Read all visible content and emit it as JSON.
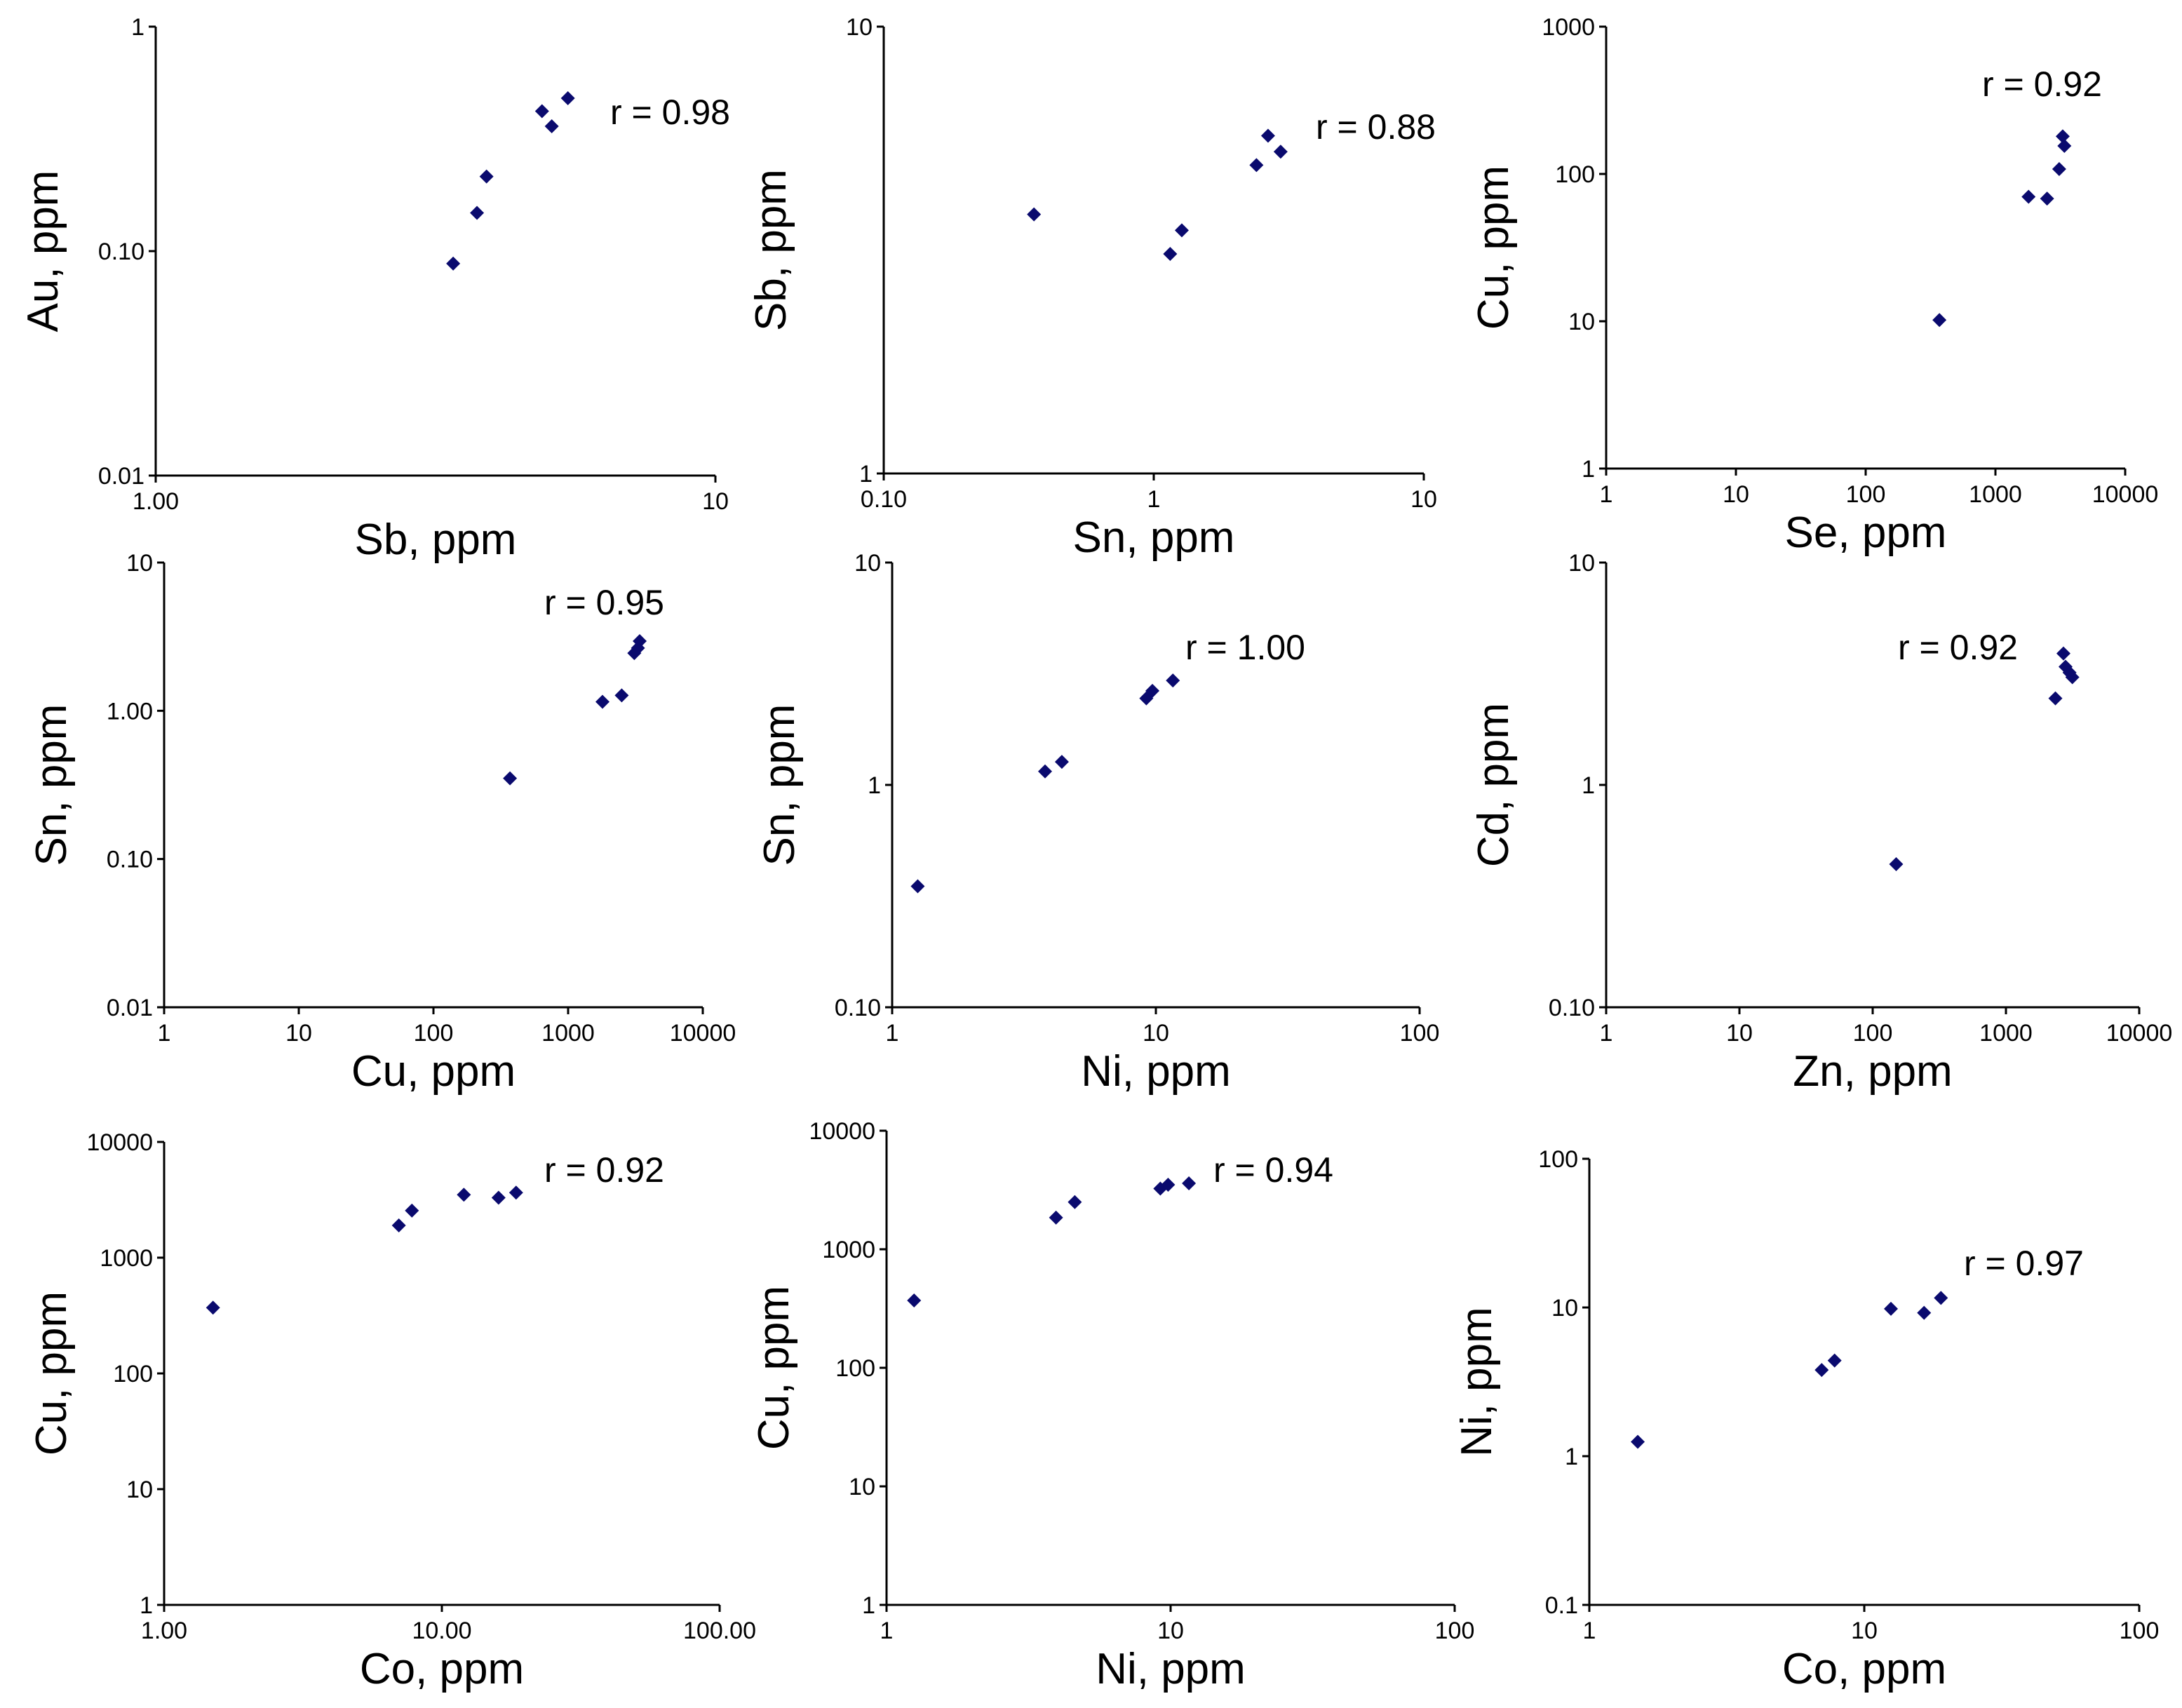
{
  "chart_data": [
    {
      "type": "scatter",
      "scale": "log-log",
      "xlabel": "Sb, ppm",
      "ylabel": "Au, ppm",
      "xlim": [
        1,
        10
      ],
      "ylim": [
        0.01,
        1
      ],
      "xticks": [
        1,
        10
      ],
      "xtick_labels": [
        "1.00",
        "10"
      ],
      "yticks": [
        0.01,
        0.1,
        1
      ],
      "ytick_labels": [
        "0.01",
        "0.10",
        "1"
      ],
      "annotation": "r = 0.98",
      "points": [
        [
          3.4,
          0.088
        ],
        [
          3.75,
          0.148
        ],
        [
          3.9,
          0.215
        ],
        [
          4.9,
          0.42
        ],
        [
          5.1,
          0.36
        ],
        [
          5.45,
          0.48
        ]
      ]
    },
    {
      "type": "scatter",
      "scale": "log-log",
      "xlabel": "Sn, ppm",
      "ylabel": "Sb, ppm",
      "xlim": [
        0.1,
        10
      ],
      "ylim": [
        1,
        10
      ],
      "xticks": [
        0.1,
        1,
        10
      ],
      "xtick_labels": [
        "0.10",
        "1",
        "10"
      ],
      "yticks": [
        1,
        10
      ],
      "ytick_labels": [
        "1",
        "10"
      ],
      "annotation": "r = 0.88",
      "points": [
        [
          0.36,
          3.8
        ],
        [
          1.15,
          3.1
        ],
        [
          1.27,
          3.5
        ],
        [
          2.4,
          4.9
        ],
        [
          2.65,
          5.7
        ],
        [
          2.95,
          5.25
        ]
      ]
    },
    {
      "type": "scatter",
      "scale": "log-log",
      "xlabel": "Se, ppm",
      "ylabel": "Cu, ppm",
      "xlim": [
        1,
        10000
      ],
      "ylim": [
        1,
        1000
      ],
      "xticks": [
        1,
        10,
        100,
        1000,
        10000
      ],
      "xtick_labels": [
        "1",
        "10",
        "100",
        "1000",
        "10000"
      ],
      "yticks": [
        1,
        10,
        100,
        1000
      ],
      "ytick_labels": [
        "1",
        "10",
        "100",
        "1000"
      ],
      "annotation": "r = 0.92",
      "points": [
        [
          370,
          10.2
        ],
        [
          1800,
          70
        ],
        [
          2500,
          68
        ],
        [
          3100,
          108
        ],
        [
          3300,
          180
        ],
        [
          3400,
          155
        ]
      ]
    },
    {
      "type": "scatter",
      "scale": "log-log",
      "xlabel": "Cu, ppm",
      "ylabel": "Sn, ppm",
      "xlim": [
        1,
        10000
      ],
      "ylim": [
        0.01,
        10
      ],
      "xticks": [
        1,
        10,
        100,
        1000,
        10000
      ],
      "xtick_labels": [
        "1",
        "10",
        "100",
        "1000",
        "10000"
      ],
      "yticks": [
        0.01,
        0.1,
        1,
        10
      ],
      "ytick_labels": [
        "0.01",
        "0.10",
        "1.00",
        "10"
      ],
      "annotation": "r = 0.95",
      "points": [
        [
          370,
          0.35
        ],
        [
          1800,
          1.15
        ],
        [
          2500,
          1.27
        ],
        [
          3100,
          2.45
        ],
        [
          3300,
          2.65
        ],
        [
          3400,
          2.95
        ]
      ]
    },
    {
      "type": "scatter",
      "scale": "log-log",
      "xlabel": "Ni, ppm",
      "ylabel": "Sn, ppm",
      "xlim": [
        1,
        100
      ],
      "ylim": [
        0.1,
        10
      ],
      "xticks": [
        1,
        10,
        100
      ],
      "xtick_labels": [
        "1",
        "10",
        "100"
      ],
      "yticks": [
        0.1,
        1,
        10
      ],
      "ytick_labels": [
        "0.10",
        "1",
        "10"
      ],
      "annotation": "r = 1.00",
      "points": [
        [
          1.25,
          0.35
        ],
        [
          3.8,
          1.15
        ],
        [
          4.4,
          1.27
        ],
        [
          9.2,
          2.45
        ],
        [
          9.7,
          2.65
        ],
        [
          11.6,
          2.95
        ]
      ]
    },
    {
      "type": "scatter",
      "scale": "log-log",
      "xlabel": "Zn, ppm",
      "ylabel": "Cd, ppm",
      "xlim": [
        1,
        10000
      ],
      "ylim": [
        0.1,
        10
      ],
      "xticks": [
        1,
        10,
        100,
        1000,
        10000
      ],
      "xtick_labels": [
        "1",
        "10",
        "100",
        "1000",
        "10000"
      ],
      "yticks": [
        0.1,
        1,
        10
      ],
      "ytick_labels": [
        "0.10",
        "1",
        "10"
      ],
      "annotation": "r = 0.92",
      "points": [
        [
          150,
          0.44
        ],
        [
          2350,
          2.45
        ],
        [
          2700,
          3.9
        ],
        [
          2800,
          3.4
        ],
        [
          3000,
          3.2
        ],
        [
          3150,
          3.05
        ]
      ]
    },
    {
      "type": "scatter",
      "scale": "log-log",
      "xlabel": "Co, ppm",
      "ylabel": "Cu, ppm",
      "xlim": [
        1,
        100
      ],
      "ylim": [
        1,
        10000
      ],
      "xticks": [
        1,
        10,
        100
      ],
      "xtick_labels": [
        "1.00",
        "10.00",
        "100.00"
      ],
      "yticks": [
        1,
        10,
        100,
        1000,
        10000
      ],
      "ytick_labels": [
        "1",
        "10",
        "100",
        "1000",
        "10000"
      ],
      "annotation": "r = 0.92",
      "points": [
        [
          1.5,
          370
        ],
        [
          7,
          1900
        ],
        [
          7.8,
          2550
        ],
        [
          12,
          3500
        ],
        [
          16,
          3300
        ],
        [
          18.5,
          3650
        ]
      ]
    },
    {
      "type": "scatter",
      "scale": "log-log",
      "xlabel": "Ni, ppm",
      "ylabel": "Cu, ppm",
      "xlim": [
        1,
        100
      ],
      "ylim": [
        1,
        10000
      ],
      "xticks": [
        1,
        10,
        100
      ],
      "xtick_labels": [
        "1",
        "10",
        "100"
      ],
      "yticks": [
        1,
        10,
        100,
        1000,
        10000
      ],
      "ytick_labels": [
        "1",
        "10",
        "100",
        "1000",
        "10000"
      ],
      "annotation": "r = 0.94",
      "points": [
        [
          1.25,
          370
        ],
        [
          3.95,
          1850
        ],
        [
          4.6,
          2500
        ],
        [
          9.2,
          3250
        ],
        [
          9.8,
          3500
        ],
        [
          11.6,
          3600
        ]
      ]
    },
    {
      "type": "scatter",
      "scale": "log-log",
      "xlabel": "Co, ppm",
      "ylabel": "Ni, ppm",
      "xlim": [
        1,
        100
      ],
      "ylim": [
        0.1,
        100
      ],
      "xticks": [
        1,
        10,
        100
      ],
      "xtick_labels": [
        "1",
        "10",
        "100"
      ],
      "yticks": [
        0.1,
        1,
        10,
        100
      ],
      "ytick_labels": [
        "0.1",
        "1",
        "10",
        "100"
      ],
      "annotation": "r = 0.97",
      "points": [
        [
          1.5,
          1.25
        ],
        [
          7,
          3.8
        ],
        [
          7.8,
          4.4
        ],
        [
          12.5,
          9.8
        ],
        [
          16.5,
          9.2
        ],
        [
          19,
          11.6
        ]
      ]
    }
  ],
  "colors": {
    "marker": "#0a0a6e",
    "axis": "#000000"
  }
}
